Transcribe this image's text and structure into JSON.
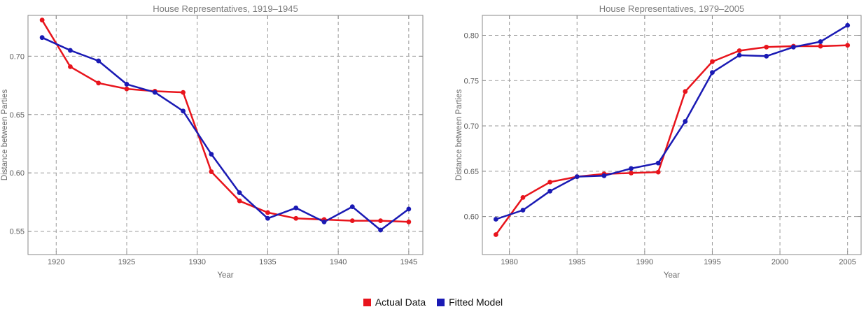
{
  "chart_data": [
    {
      "type": "line",
      "title": "House Representatives, 1919–1945",
      "xlabel": "Year",
      "ylabel": "Distance between Parties",
      "xlim": [
        1918,
        1946
      ],
      "ylim": [
        0.53,
        0.735
      ],
      "xticks": [
        1920,
        1925,
        1930,
        1935,
        1940,
        1945
      ],
      "yticks": [
        0.55,
        0.6,
        0.65,
        0.7
      ],
      "xtick_labels": [
        "1920",
        "1925",
        "1930",
        "1935",
        "1940",
        "1945"
      ],
      "ytick_labels": [
        "0.55",
        "0.60",
        "0.65",
        "0.70"
      ],
      "grid": true,
      "x": [
        1919,
        1921,
        1923,
        1925,
        1927,
        1929,
        1931,
        1933,
        1935,
        1937,
        1939,
        1941,
        1943,
        1945
      ],
      "series": [
        {
          "name": "Actual Data",
          "color": "#e8141c",
          "values": [
            0.731,
            0.691,
            0.677,
            0.672,
            0.67,
            0.669,
            0.601,
            0.576,
            0.566,
            0.561,
            0.56,
            0.559,
            0.559,
            0.558
          ]
        },
        {
          "name": "Fitted Model",
          "color": "#1a1ab4",
          "values": [
            0.716,
            0.705,
            0.696,
            0.676,
            0.669,
            0.653,
            0.616,
            0.583,
            0.561,
            0.57,
            0.558,
            0.571,
            0.551,
            0.569
          ]
        }
      ]
    },
    {
      "type": "line",
      "title": "House Representatives, 1979–2005",
      "xlabel": "Year",
      "ylabel": "Distance between Parties",
      "xlim": [
        1978,
        2006
      ],
      "ylim": [
        0.558,
        0.822
      ],
      "xticks": [
        1980,
        1985,
        1990,
        1995,
        2000,
        2005
      ],
      "yticks": [
        0.6,
        0.65,
        0.7,
        0.75,
        0.8
      ],
      "xtick_labels": [
        "1980",
        "1985",
        "1990",
        "1995",
        "2000",
        "2005"
      ],
      "ytick_labels": [
        "0.60",
        "0.65",
        "0.70",
        "0.75",
        "0.80"
      ],
      "grid": true,
      "x": [
        1979,
        1981,
        1983,
        1985,
        1987,
        1989,
        1991,
        1993,
        1995,
        1997,
        1999,
        2001,
        2003,
        2005
      ],
      "series": [
        {
          "name": "Actual Data",
          "color": "#e8141c",
          "values": [
            0.58,
            0.621,
            0.638,
            0.644,
            0.647,
            0.648,
            0.649,
            0.738,
            0.771,
            0.783,
            0.787,
            0.788,
            0.788,
            0.789
          ]
        },
        {
          "name": "Fitted Model",
          "color": "#1a1ab4",
          "values": [
            0.597,
            0.607,
            0.628,
            0.644,
            0.645,
            0.653,
            0.659,
            0.705,
            0.759,
            0.778,
            0.777,
            0.787,
            0.793,
            0.811
          ]
        }
      ]
    }
  ],
  "legend": [
    {
      "label": "Actual Data",
      "color": "#e8141c"
    },
    {
      "label": "Fitted Model",
      "color": "#1a1ab4"
    }
  ]
}
